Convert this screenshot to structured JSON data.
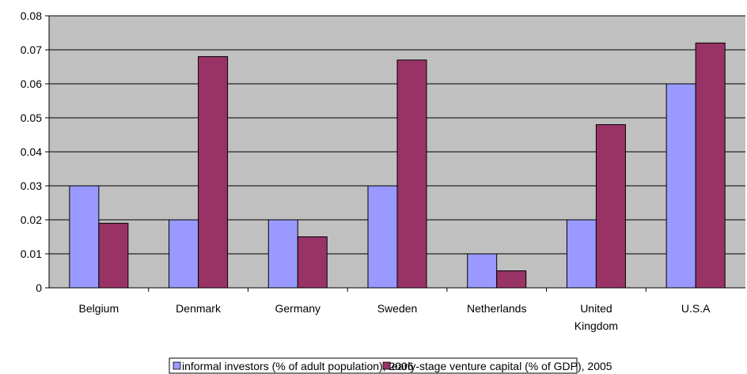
{
  "chart_data": {
    "type": "bar",
    "title": "",
    "xlabel": "",
    "ylabel": "",
    "categories": [
      "Belgium",
      "Denmark",
      "Germany",
      "Sweden",
      "Netherlands",
      "United Kingdom",
      "U.S.A"
    ],
    "series": [
      {
        "name": "informal investors (% of adult population), 2006",
        "color": "#9999ff",
        "values": [
          0.03,
          0.02,
          0.02,
          0.03,
          0.01,
          0.02,
          0.06
        ]
      },
      {
        "name": "early-stage venture capital (% of GDP), 2005",
        "color": "#993366",
        "values": [
          0.019,
          0.068,
          0.015,
          0.067,
          0.005,
          0.048,
          0.072
        ]
      }
    ],
    "ylim": [
      0,
      0.08
    ],
    "yticks": [
      "0",
      "0.01",
      "0.02",
      "0.03",
      "0.04",
      "0.05",
      "0.06",
      "0.07",
      "0.08"
    ],
    "grid": true,
    "plot_background": "#c0c0c0",
    "legend_position": "bottom"
  }
}
